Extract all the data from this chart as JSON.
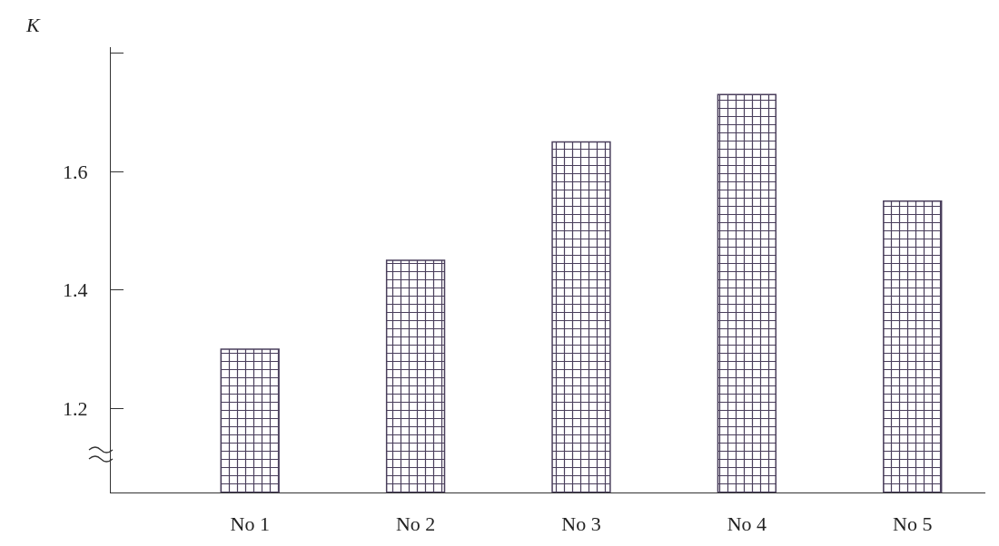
{
  "chart_data": {
    "type": "bar",
    "ylabel": "K",
    "categories": [
      "No 1",
      "No 2",
      "No 3",
      "No 4",
      "No 5"
    ],
    "values": [
      1.3,
      1.45,
      1.65,
      1.73,
      1.55
    ],
    "color": "#4a3f5c",
    "ylim": [
      1.058,
      1.81
    ],
    "yticks": [
      1.2,
      1.4,
      1.6,
      {
        "value": 1.8,
        "label": null
      }
    ],
    "grid": false
  }
}
